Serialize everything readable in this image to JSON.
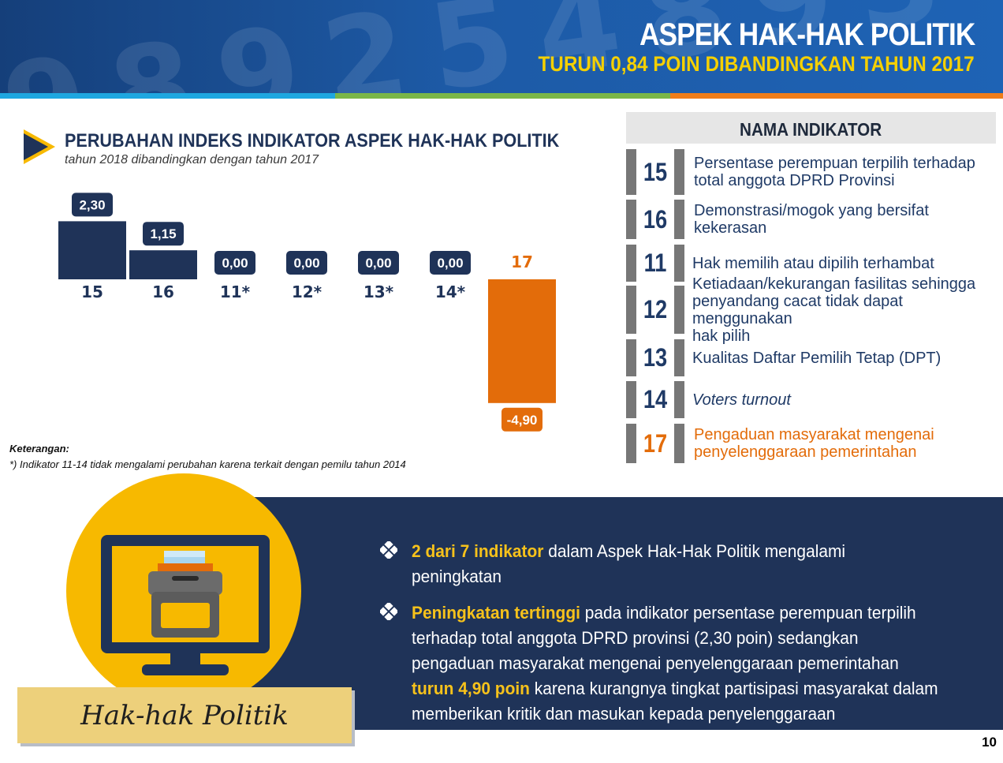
{
  "header": {
    "title": "ASPEK HAK-HAK POLITIK",
    "subtitle": "TURUN 0,84 POIN DIBANDINGKAN TAHUN 2017",
    "accent": "#f5d000"
  },
  "chart_data": {
    "type": "bar",
    "title": "PERUBAHAN INDEKS INDIKATOR ASPEK HAK-HAK POLITIK",
    "subtitle": "tahun 2018 dibandingkan dengan tahun 2017",
    "categories": [
      "15",
      "16",
      "11*",
      "12*",
      "13*",
      "14*",
      "17"
    ],
    "values": [
      2.3,
      1.15,
      0.0,
      0.0,
      0.0,
      0.0,
      -4.9
    ],
    "value_labels": [
      "2,30",
      "1,15",
      "0,00",
      "0,00",
      "0,00",
      "0,00",
      "-4,90"
    ],
    "colors": [
      "#1f3358",
      "#1f3358",
      "#1f3358",
      "#1f3358",
      "#1f3358",
      "#1f3358",
      "#e36c0a"
    ],
    "xlabel": "",
    "ylabel": "",
    "grid": false,
    "note_title": "Keterangan:",
    "note": "*) Indikator 11-14 tidak mengalami perubahan karena terkait dengan pemilu tahun 2014"
  },
  "indicator_panel": {
    "heading": "NAMA INDIKATOR",
    "items": [
      {
        "num": "15",
        "label_lines": [
          "Persentase perempuan terpilih terhadap",
          "total anggota DPRD Provinsi"
        ]
      },
      {
        "num": "16",
        "label_lines": [
          "Demonstrasi/mogok yang bersifat",
          "kekerasan"
        ]
      },
      {
        "num": "11",
        "label_lines": [
          "Hak memilih atau dipilih terhambat"
        ]
      },
      {
        "num": "12",
        "label_lines": [
          "Ketiadaan/kekurangan fasilitas sehingga",
          "penyandang cacat tidak dapat menggunakan",
          "hak pilih"
        ]
      },
      {
        "num": "13",
        "label_lines": [
          "Kualitas Daftar Pemilih Tetap (DPT)"
        ]
      },
      {
        "num": "14",
        "label_lines": [
          "Voters turnout"
        ]
      },
      {
        "num": "17",
        "label_lines": [
          "Pengaduan masyarakat mengenai",
          "penyelenggaraan pemerintahan"
        ]
      }
    ]
  },
  "summary": {
    "badge": "Hak-hak Politik",
    "bullet1": {
      "hl": "2 dari 7 indikator",
      "text": " dalam Aspek Hak-Hak Politik mengalami peningkatan"
    },
    "bullet2": {
      "hl1": "Peningkatan tertinggi",
      "text1": " pada indikator persentase perempuan terpilih terhadap total anggota DPRD provinsi (2,30 poin) sedangkan pengaduan masyarakat mengenai penyelenggaraan pemerintahan ",
      "hl2": "turun 4,90 poin",
      "text2": " karena kurangnya tingkat partisipasi masyarakat dalam memberikan kritik dan masukan kepada penyelenggaraan pemerintahan"
    }
  },
  "page_number": "10"
}
